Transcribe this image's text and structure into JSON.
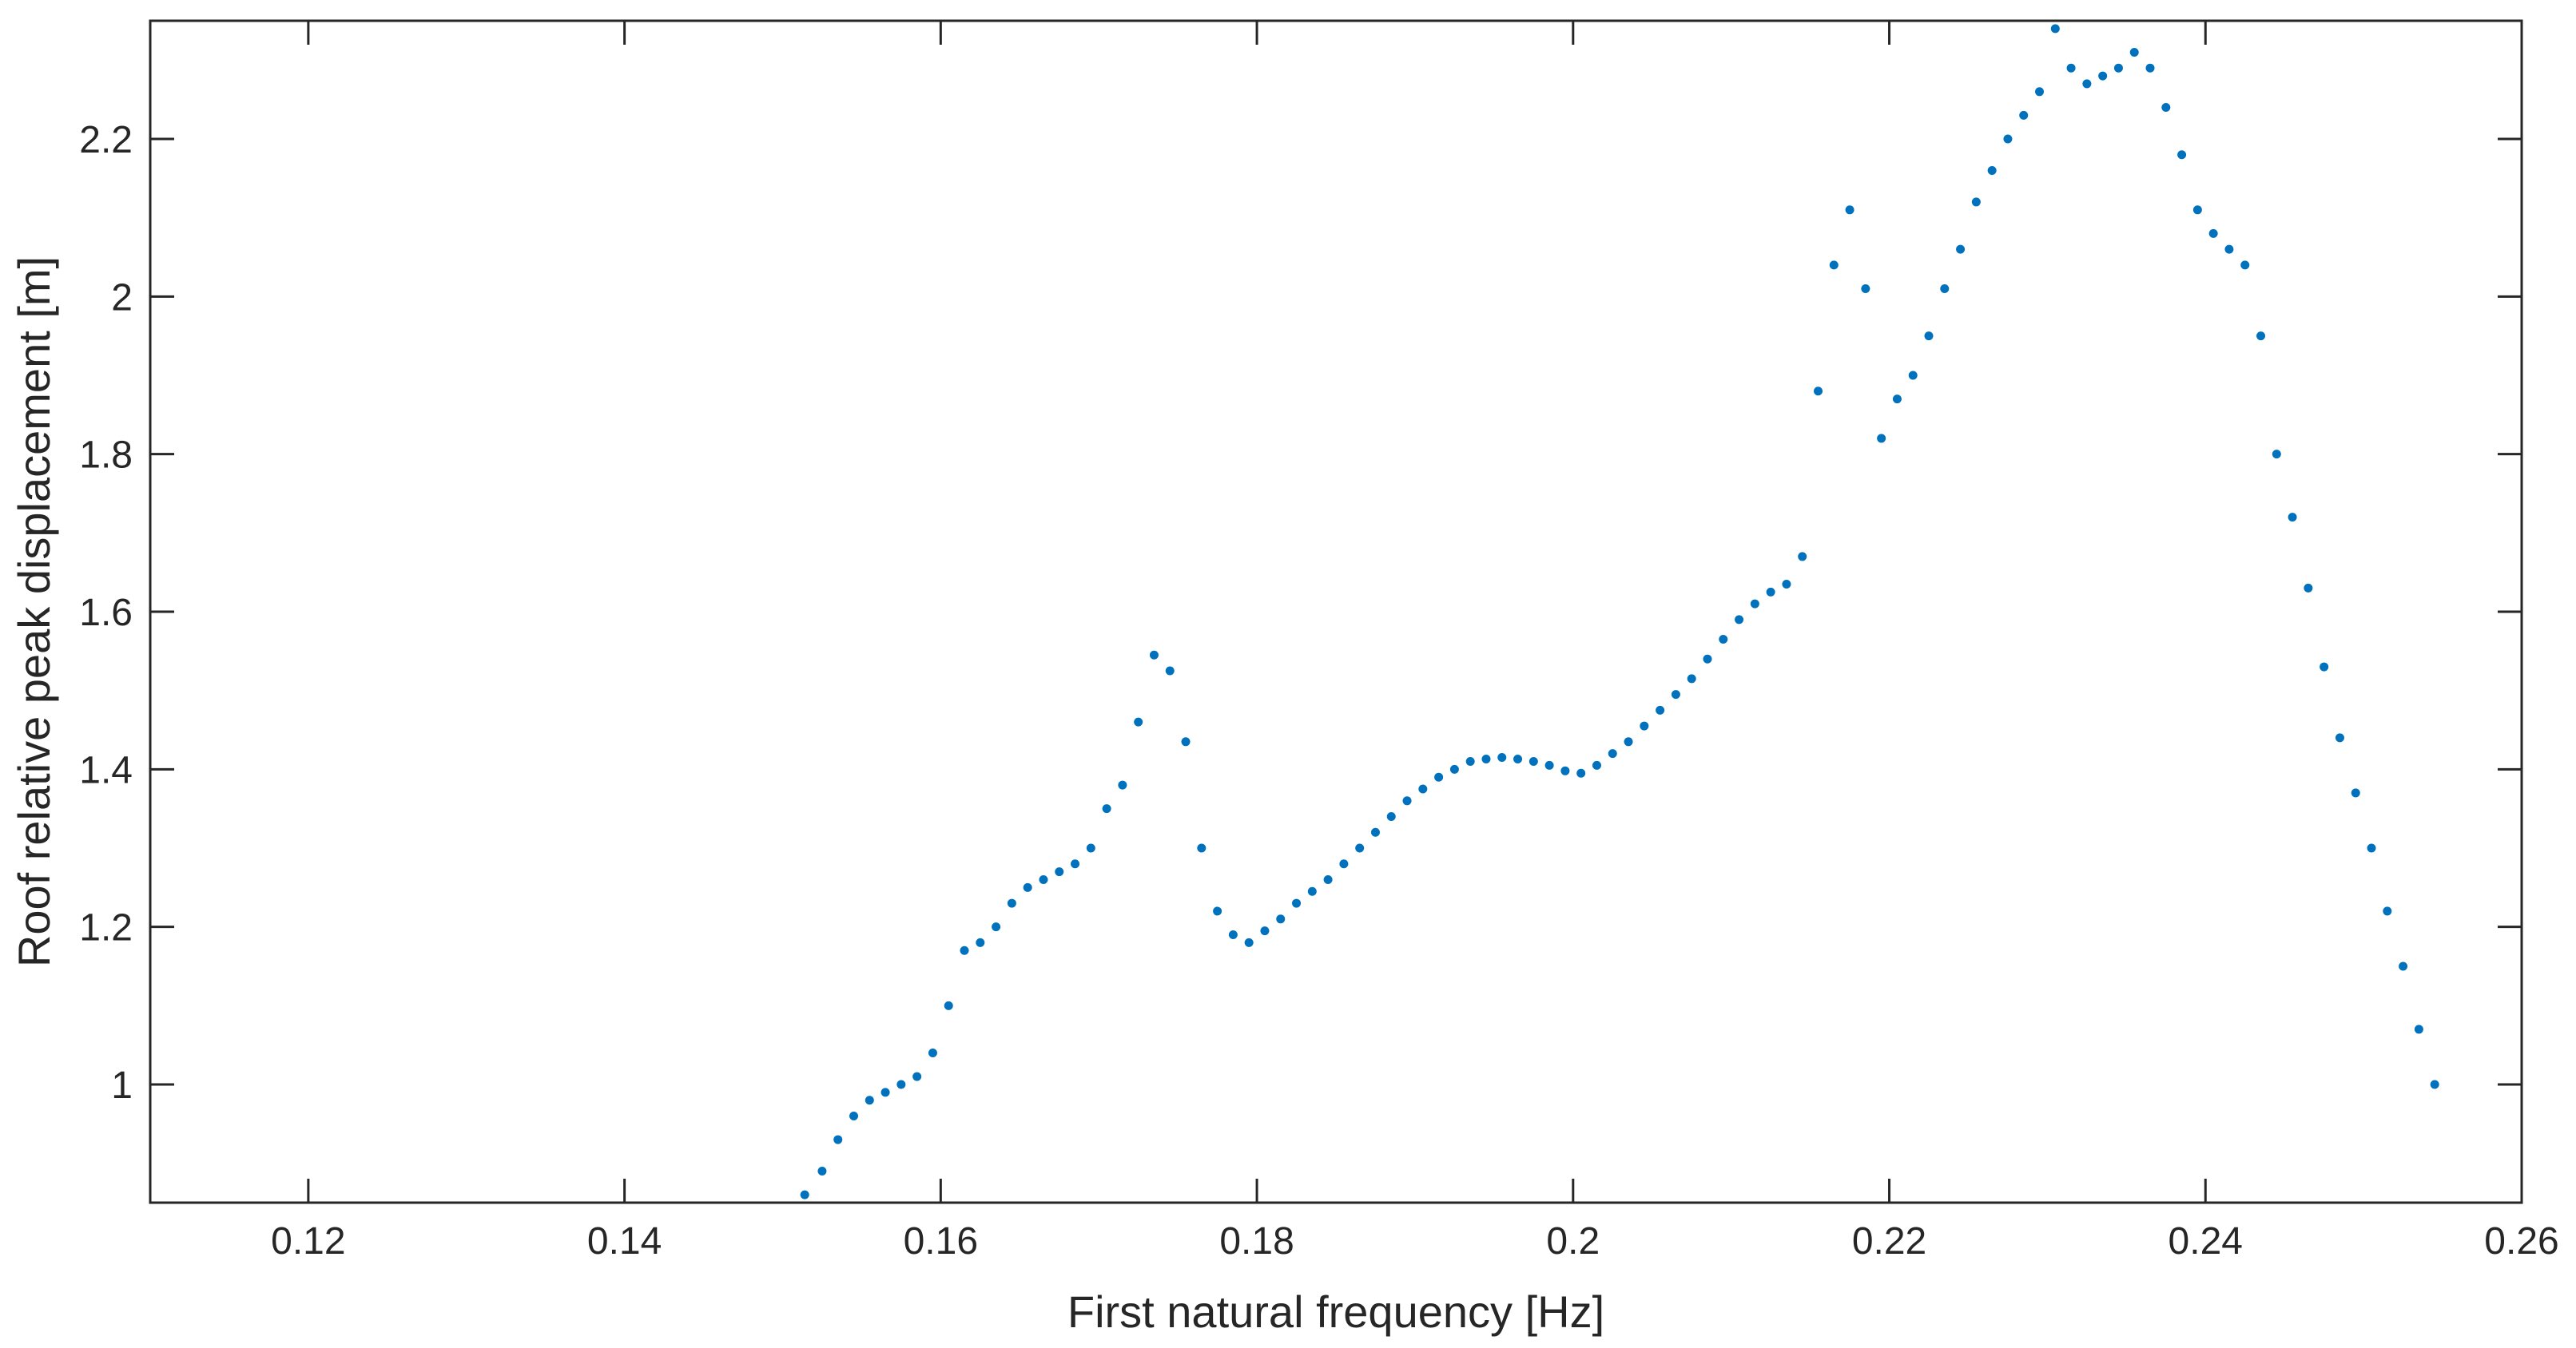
{
  "chart_data": {
    "type": "scatter",
    "title": "",
    "xlabel": "First natural frequency [Hz]",
    "ylabel": "Roof relative peak displacement [m]",
    "xlim": [
      0.11,
      0.26
    ],
    "ylim": [
      0.85,
      2.35
    ],
    "xticks": [
      0.12,
      0.14,
      0.16,
      0.18,
      0.2,
      0.22,
      0.24,
      0.26
    ],
    "xtick_labels": [
      "0.12",
      "0.14",
      "0.16",
      "0.18",
      "0.2",
      "0.22",
      "0.24",
      "0.26"
    ],
    "yticks": [
      1,
      1.2,
      1.4,
      1.6,
      1.8,
      2,
      2.2
    ],
    "ytick_labels": [
      "1",
      "1.2",
      "1.4",
      "1.6",
      "1.8",
      "2",
      "2.2"
    ],
    "grid": false,
    "marker_color": "#0072BD",
    "axis_color": "#262626",
    "series": [
      {
        "x": [
          0.1514,
          0.1525,
          0.1535,
          0.1545,
          0.1555,
          0.1565,
          0.1575,
          0.1585,
          0.1595,
          0.1605,
          0.1615,
          0.1625,
          0.1635,
          0.1645,
          0.1655,
          0.1665,
          0.1675,
          0.1685,
          0.1695,
          0.1705,
          0.1715,
          0.1725,
          0.1735,
          0.1745,
          0.1755,
          0.1765,
          0.1775,
          0.1785,
          0.1795,
          0.1805,
          0.1815,
          0.1825,
          0.1835,
          0.1845,
          0.1855,
          0.1865,
          0.1875,
          0.1885,
          0.1895,
          0.1905,
          0.1915,
          0.1925,
          0.1935,
          0.1945,
          0.1955,
          0.1965,
          0.1975,
          0.1985,
          0.1995,
          0.2005,
          0.2015,
          0.2025,
          0.2035,
          0.2045,
          0.2055,
          0.2065,
          0.2075,
          0.2085,
          0.2095,
          0.2105,
          0.2115,
          0.2125,
          0.2135,
          0.2145,
          0.2155,
          0.2165,
          0.2175,
          0.2185,
          0.2195,
          0.2205,
          0.2215,
          0.2225,
          0.2235,
          0.2245,
          0.2255,
          0.2265,
          0.2275,
          0.2285,
          0.2295,
          0.2305,
          0.2315,
          0.2325,
          0.2335,
          0.2345,
          0.2355,
          0.2365,
          0.2375,
          0.2385,
          0.2395,
          0.2405,
          0.2415,
          0.2425,
          0.2435,
          0.2445,
          0.2455,
          0.2465,
          0.2475,
          0.2485,
          0.2495,
          0.2505,
          0.2515,
          0.2525,
          0.2535,
          0.2545
        ],
        "y": [
          0.86,
          0.89,
          0.93,
          0.96,
          0.98,
          0.99,
          1.0,
          1.01,
          1.04,
          1.1,
          1.17,
          1.18,
          1.2,
          1.23,
          1.25,
          1.26,
          1.27,
          1.28,
          1.3,
          1.35,
          1.38,
          1.46,
          1.545,
          1.525,
          1.435,
          1.3,
          1.22,
          1.19,
          1.18,
          1.195,
          1.21,
          1.23,
          1.245,
          1.26,
          1.28,
          1.3,
          1.32,
          1.34,
          1.36,
          1.375,
          1.39,
          1.4,
          1.41,
          1.413,
          1.415,
          1.413,
          1.41,
          1.405,
          1.398,
          1.395,
          1.405,
          1.42,
          1.435,
          1.455,
          1.475,
          1.495,
          1.515,
          1.54,
          1.565,
          1.59,
          1.61,
          1.625,
          1.635,
          1.67,
          1.88,
          2.04,
          2.11,
          2.01,
          1.82,
          1.87,
          1.9,
          1.95,
          2.01,
          2.06,
          2.12,
          2.16,
          2.2,
          2.23,
          2.26,
          2.34,
          2.29,
          2.27,
          2.28,
          2.29,
          2.31,
          2.29,
          2.24,
          2.18,
          2.11,
          2.08,
          2.06,
          2.04,
          1.95,
          1.8,
          1.72,
          1.63,
          1.53,
          1.44,
          1.37,
          1.3,
          1.22,
          1.15,
          1.07,
          1.0
        ]
      }
    ]
  }
}
